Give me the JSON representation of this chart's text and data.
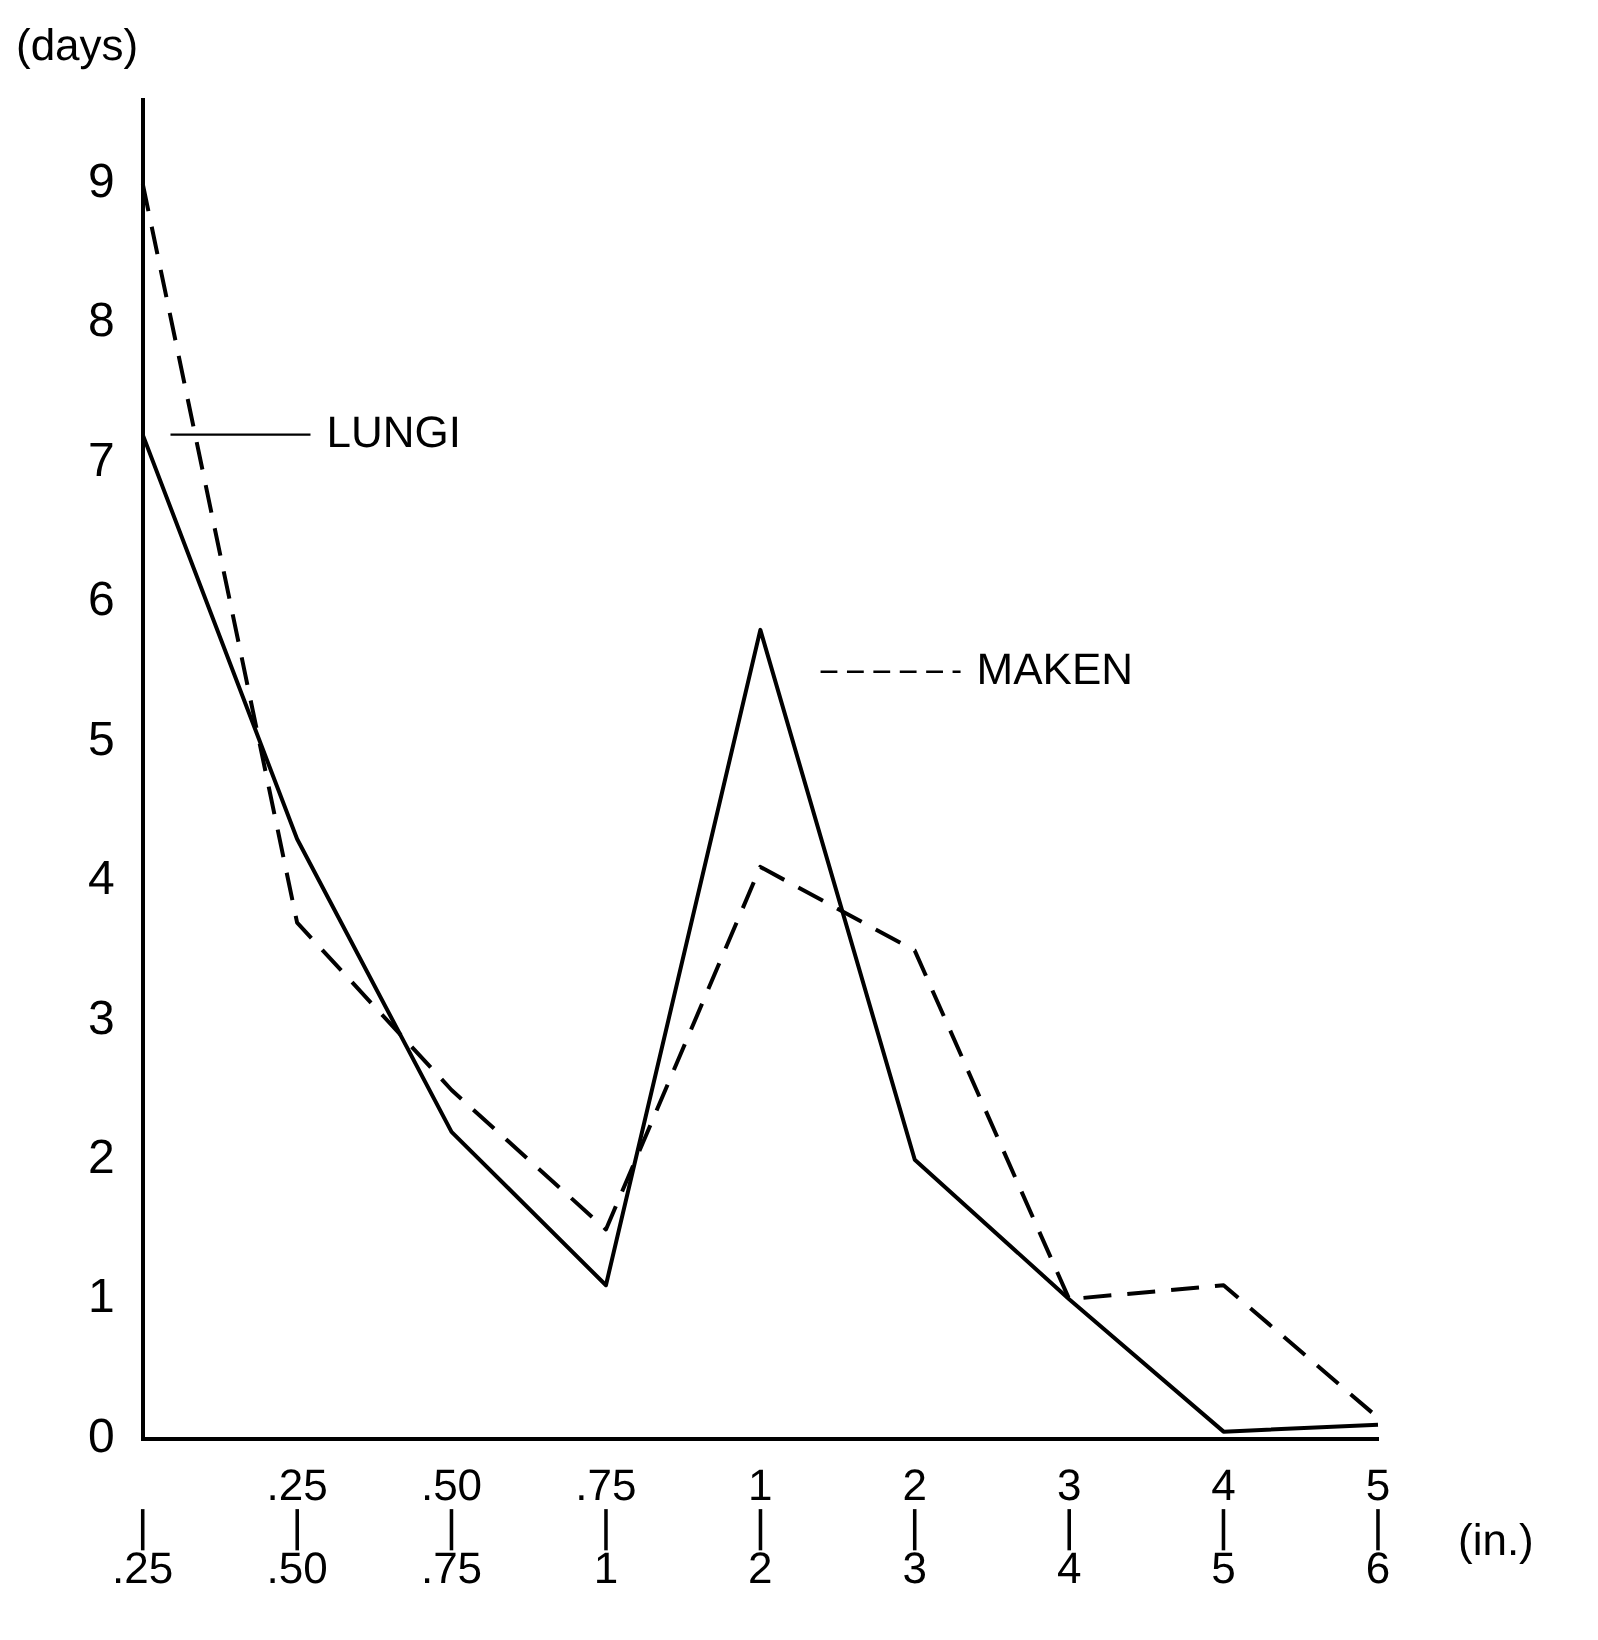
{
  "chart_data": {
    "type": "line",
    "ylabel": "(days)",
    "xlabel": "(in.)",
    "categories": [
      "\n|\n.25",
      ".25\n|\n.50",
      ".50\n|\n.75",
      ".75\n|\n1",
      "1\n|\n2",
      "2\n|\n3",
      "3\n|\n4",
      "4\n|\n5",
      "5\n|\n6"
    ],
    "series": [
      {
        "name": "LUNGI",
        "color": "#000000",
        "line_style": "solid",
        "values": [
          7.2,
          4.3,
          2.2,
          1.1,
          5.8,
          2.0,
          1.0,
          0.05,
          0.1
        ]
      },
      {
        "name": "MAKEN",
        "color": "#000000",
        "line_style": "dashed",
        "values": [
          9.0,
          3.7,
          2.5,
          1.5,
          4.1,
          3.5,
          1.0,
          1.1,
          0.15
        ]
      }
    ],
    "ylim": [
      0,
      9.6
    ],
    "yticks": [
      0,
      1,
      2,
      3,
      4,
      5,
      6,
      7,
      8,
      9
    ],
    "grid": false,
    "legend": "top left",
    "marker": "none"
  }
}
